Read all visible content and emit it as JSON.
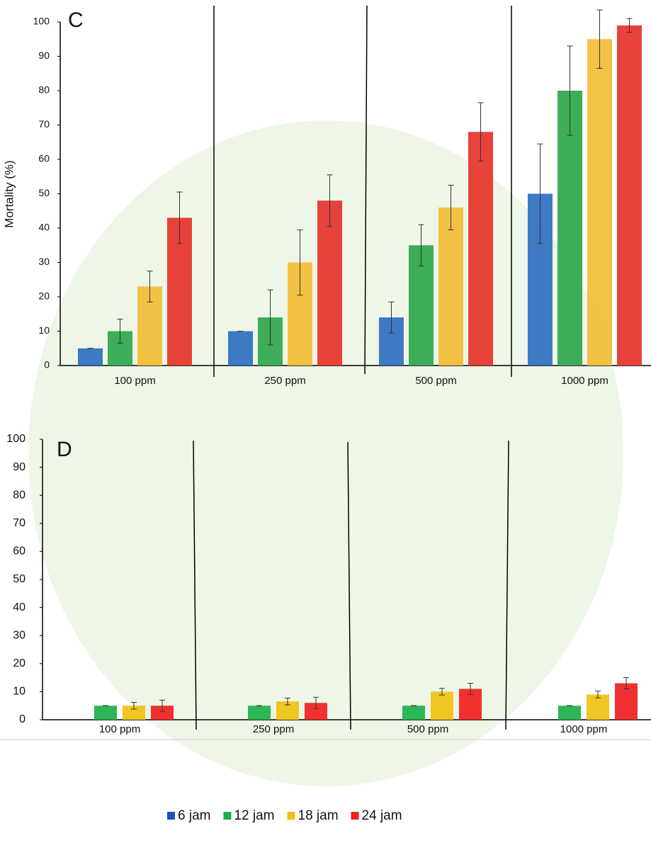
{
  "chart_data": [
    {
      "type": "bar",
      "title": "C",
      "y_label": "Mortality (%)",
      "categories": [
        "100 ppm",
        "250 ppm",
        "500 ppm",
        "1000 ppm"
      ],
      "ylim": [
        0,
        100
      ],
      "yticks": [
        0,
        10,
        20,
        30,
        40,
        50,
        60,
        70,
        80,
        90,
        100
      ],
      "series": [
        {
          "color": "#2f6fc0",
          "values": [
            5,
            10,
            14,
            50
          ],
          "errors": [
            0,
            0,
            4.5,
            14.5
          ]
        },
        {
          "color": "#2fa64a",
          "values": [
            10,
            14,
            35,
            80
          ],
          "errors": [
            3.5,
            8,
            6,
            13
          ]
        },
        {
          "color": "#f3bd35",
          "values": [
            23,
            30,
            46,
            95
          ],
          "errors": [
            4.5,
            9.5,
            6.5,
            8.5
          ]
        },
        {
          "color": "#e5322a",
          "values": [
            43,
            48,
            68,
            99
          ],
          "errors": [
            7.5,
            7.5,
            8.5,
            2
          ]
        }
      ]
    },
    {
      "type": "bar",
      "title": "D",
      "categories": [
        "100 ppm",
        "250 ppm",
        "500 ppm",
        "1000 ppm"
      ],
      "ylim": [
        0,
        100
      ],
      "yticks": [
        0,
        10,
        20,
        30,
        40,
        50,
        60,
        70,
        80,
        90,
        100
      ],
      "series": [
        {
          "name": "6 jam",
          "color": "#1f4fc0",
          "values": [
            0,
            0,
            0,
            0
          ],
          "errors": [
            0,
            0,
            0,
            0
          ]
        },
        {
          "name": "12 jam",
          "color": "#1db04a",
          "values": [
            5,
            5,
            5,
            5
          ],
          "errors": [
            0,
            0,
            0,
            0
          ]
        },
        {
          "name": "18 jam",
          "color": "#f0c010",
          "values": [
            5,
            6.5,
            10,
            9
          ],
          "errors": [
            1.2,
            1.2,
            1.2,
            1.2
          ]
        },
        {
          "name": "24 jam",
          "color": "#f02020",
          "values": [
            5,
            6,
            11,
            13
          ],
          "errors": [
            2,
            2,
            2,
            2
          ]
        }
      ]
    }
  ]
}
